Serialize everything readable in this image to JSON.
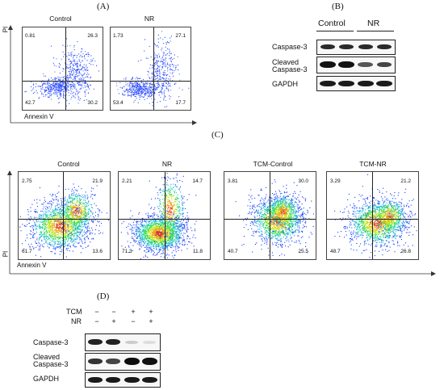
{
  "panel_A": {
    "letter": "(A)",
    "ylabel": "PI",
    "xlabel": "Annexin V",
    "plots": [
      {
        "title": "Control",
        "ul": "0.81",
        "ur": "26.3",
        "ll": "42.7",
        "lr": "30.2"
      },
      {
        "title": "NR",
        "ul": "1.73",
        "ur": "27.1",
        "ll": "53.4",
        "lr": "17.7"
      }
    ]
  },
  "panel_B": {
    "letter": "(B)",
    "groups": [
      "Control",
      "NR"
    ],
    "rows": [
      "Caspase-3",
      "Cleaved\nCaspase-3",
      "GAPDH"
    ]
  },
  "panel_C": {
    "letter": "(C)",
    "ylabel": "PI",
    "xlabel": "Annexin V",
    "plots": [
      {
        "title": "Control",
        "ul": "2.75",
        "ur": "21.9",
        "ll": "61.7",
        "lr": "13.6"
      },
      {
        "title": "NR",
        "ul": "2.21",
        "ur": "14.7",
        "ll": "71.3",
        "lr": "11.8"
      },
      {
        "title": "TCM-Control",
        "ul": "3.81",
        "ur": "30.0",
        "ll": "40.7",
        "lr": "25.5"
      },
      {
        "title": "TCM-NR",
        "ul": "3.29",
        "ur": "21.2",
        "ll": "48.7",
        "lr": "26.8"
      }
    ]
  },
  "panel_D": {
    "letter": "(D)",
    "conditions": [
      {
        "label": "TCM",
        "signs": [
          "−",
          "−",
          "+",
          "+"
        ]
      },
      {
        "label": "NR",
        "signs": [
          "−",
          "+",
          "−",
          "+"
        ]
      }
    ],
    "rows": [
      "Caspase-3",
      "Cleaved\nCaspase-3",
      "GAPDH"
    ]
  }
}
